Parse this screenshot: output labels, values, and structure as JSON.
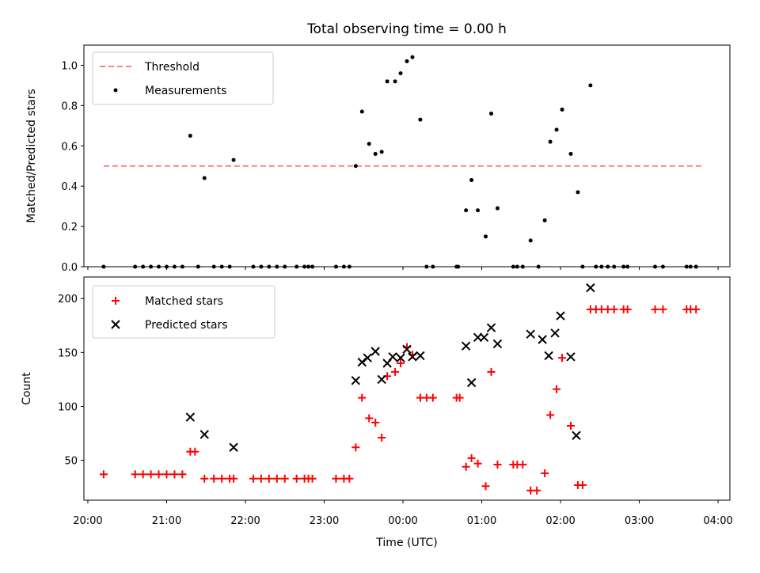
{
  "chart_data": [
    {
      "type": "scatter",
      "title": "Total observing time = 0.00 h",
      "xlabel": "",
      "ylabel": "Matched/Predicted stars",
      "xlim": [
        -0.05,
        8.15
      ],
      "ylim": [
        0,
        1.1
      ],
      "x_tick_values": [
        0,
        1,
        2,
        3,
        4,
        5,
        6,
        7,
        8
      ],
      "y_ticks": [
        "0.0",
        "0.2",
        "0.4",
        "0.6",
        "0.8",
        "1.0"
      ],
      "y_tick_values": [
        0.0,
        0.2,
        0.4,
        0.6,
        0.8,
        1.0
      ],
      "grid": false,
      "legend_position": "top-left",
      "colors": {
        "threshold": "#ff7f7f",
        "measurements": "#000000"
      },
      "series": [
        {
          "name": "Threshold",
          "kind": "dashed-line",
          "x": [
            0.2,
            7.8
          ],
          "y": [
            0.5,
            0.5
          ]
        },
        {
          "name": "Measurements",
          "kind": "points",
          "x": [
            0.2,
            0.6,
            0.7,
            0.8,
            0.9,
            1.0,
            1.1,
            1.2,
            1.3,
            1.4,
            1.48,
            1.6,
            1.7,
            1.8,
            1.85,
            2.1,
            2.2,
            2.3,
            2.4,
            2.5,
            2.65,
            2.75,
            2.8,
            2.85,
            3.15,
            3.25,
            3.32,
            3.4,
            3.48,
            3.57,
            3.65,
            3.73,
            3.8,
            3.9,
            3.97,
            4.05,
            4.12,
            4.22,
            4.3,
            4.38,
            4.68,
            4.7,
            4.8,
            4.87,
            4.95,
            5.05,
            5.12,
            5.2,
            5.4,
            5.45,
            5.52,
            5.62,
            5.72,
            5.8,
            5.87,
            5.95,
            6.02,
            6.13,
            6.22,
            6.28,
            6.38,
            6.45,
            6.52,
            6.6,
            6.68,
            6.8,
            6.85,
            7.2,
            7.3,
            7.6,
            7.65,
            7.72
          ],
          "y": [
            0.0,
            0.0,
            0.0,
            0.0,
            0.0,
            0.0,
            0.0,
            0.0,
            0.65,
            0.0,
            0.44,
            0.0,
            0.0,
            0.0,
            0.53,
            0.0,
            0.0,
            0.0,
            0.0,
            0.0,
            0.0,
            0.0,
            0.0,
            0.0,
            0.0,
            0.0,
            0.0,
            0.5,
            0.77,
            0.61,
            0.56,
            0.57,
            0.92,
            0.92,
            0.96,
            1.02,
            1.04,
            0.73,
            0.0,
            0.0,
            0.0,
            0.0,
            0.28,
            0.43,
            0.28,
            0.15,
            0.76,
            0.29,
            0.0,
            0.0,
            0.0,
            0.13,
            0.0,
            0.23,
            0.62,
            0.68,
            0.78,
            0.56,
            0.37,
            0.0,
            0.9,
            0.0,
            0.0,
            0.0,
            0.0,
            0.0,
            0.0,
            0.0,
            0.0,
            0.0,
            0.0,
            0.0
          ]
        }
      ]
    },
    {
      "type": "scatter",
      "title": "",
      "xlabel": "Time (UTC)",
      "ylabel": "Count",
      "xlim": [
        -0.05,
        8.15
      ],
      "ylim": [
        13,
        220
      ],
      "x_ticks": [
        "20:00",
        "21:00",
        "22:00",
        "23:00",
        "00:00",
        "01:00",
        "02:00",
        "03:00",
        "04:00"
      ],
      "x_tick_values": [
        0,
        1,
        2,
        3,
        4,
        5,
        6,
        7,
        8
      ],
      "y_ticks": [
        "50",
        "100",
        "150",
        "200"
      ],
      "y_tick_values": [
        50,
        100,
        150,
        200
      ],
      "grid": false,
      "legend_position": "top-left",
      "colors": {
        "matched": "#ff0000",
        "predicted": "#000000"
      },
      "series": [
        {
          "name": "Matched stars",
          "marker": "plus",
          "x": [
            0.2,
            0.6,
            0.7,
            0.8,
            0.9,
            1.0,
            1.1,
            1.2,
            1.3,
            1.36,
            1.48,
            1.6,
            1.7,
            1.8,
            1.85,
            2.1,
            2.2,
            2.3,
            2.4,
            2.5,
            2.65,
            2.75,
            2.8,
            2.85,
            3.15,
            3.25,
            3.32,
            3.4,
            3.48,
            3.57,
            3.65,
            3.73,
            3.8,
            3.9,
            3.97,
            4.05,
            4.12,
            4.22,
            4.3,
            4.38,
            4.68,
            4.72,
            4.8,
            4.87,
            4.95,
            5.05,
            5.12,
            5.2,
            5.4,
            5.45,
            5.52,
            5.62,
            5.7,
            5.8,
            5.87,
            5.95,
            6.02,
            6.13,
            6.22,
            6.28,
            6.38,
            6.45,
            6.52,
            6.6,
            6.68,
            6.8,
            6.85,
            7.2,
            7.3,
            7.6,
            7.65,
            7.72
          ],
          "y": [
            37,
            37,
            37,
            37,
            37,
            37,
            37,
            37,
            58,
            58,
            33,
            33,
            33,
            33,
            33,
            33,
            33,
            33,
            33,
            33,
            33,
            33,
            33,
            33,
            33,
            33,
            33,
            62,
            108,
            89,
            85,
            71,
            128,
            132,
            140,
            155,
            148,
            108,
            108,
            108,
            108,
            108,
            44,
            52,
            47,
            26,
            132,
            46,
            46,
            46,
            46,
            22,
            22,
            38,
            92,
            116,
            145,
            82,
            27,
            27,
            190,
            190,
            190,
            190,
            190,
            190,
            190,
            190,
            190,
            190,
            190,
            190
          ]
        },
        {
          "name": "Predicted stars",
          "marker": "x",
          "x": [
            1.3,
            1.48,
            1.85,
            3.4,
            3.48,
            3.55,
            3.65,
            3.73,
            3.8,
            3.87,
            3.97,
            4.05,
            4.12,
            4.22,
            4.8,
            4.87,
            4.95,
            5.03,
            5.12,
            5.2,
            5.62,
            5.77,
            5.85,
            5.93,
            6.0,
            6.13,
            6.2,
            6.38
          ],
          "y": [
            90,
            74,
            62,
            124,
            141,
            145,
            151,
            125,
            140,
            146,
            145,
            153,
            146,
            147,
            156,
            122,
            164,
            164,
            173,
            158,
            167,
            162,
            147,
            168,
            184,
            146,
            73,
            210
          ]
        }
      ]
    }
  ]
}
